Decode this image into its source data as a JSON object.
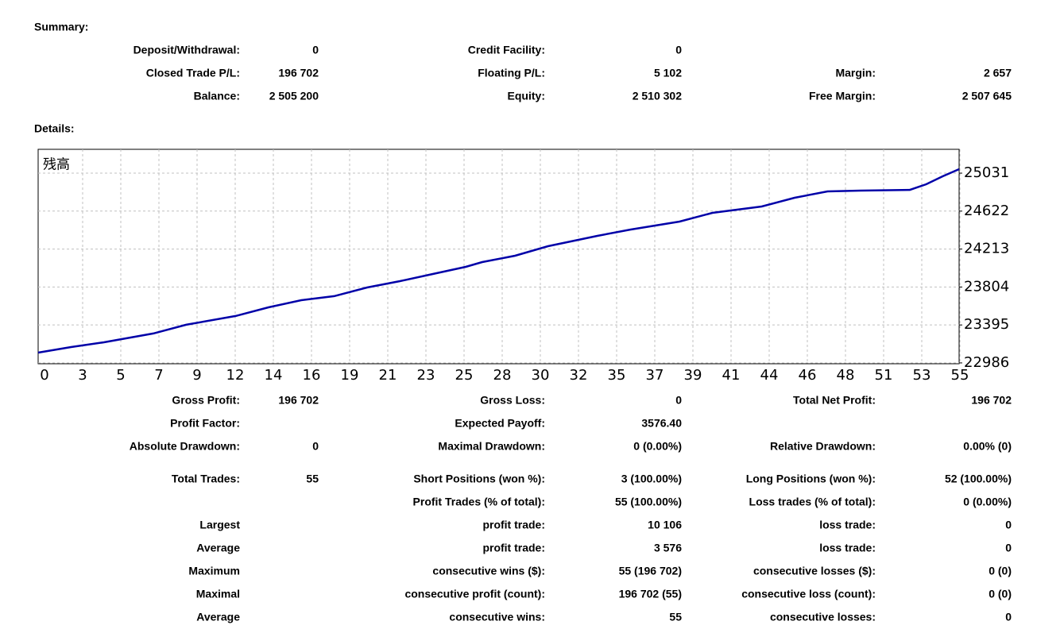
{
  "summary": {
    "title": "Summary:",
    "rows": [
      [
        "Deposit/Withdrawal:",
        "0",
        "Credit Facility:",
        "0",
        null,
        null
      ],
      [
        "Closed Trade P/L:",
        "196 702",
        "Floating P/L:",
        "5 102",
        "Margin:",
        "2 657"
      ],
      [
        "Balance:",
        "2 505 200",
        "Equity:",
        "2 510 302",
        "Free Margin:",
        "2 507 645"
      ]
    ]
  },
  "details": {
    "title": "Details:",
    "rows": [
      [
        "Gross Profit:",
        "196 702",
        "Gross Loss:",
        "0",
        "Total Net Profit:",
        "196 702"
      ],
      [
        "Profit Factor:",
        null,
        "Expected Payoff:",
        "3576.40",
        null,
        null
      ],
      [
        "Absolute Drawdown:",
        "0",
        "Maximal Drawdown:",
        "0 (0.00%)",
        "Relative Drawdown:",
        "0.00% (0)"
      ],
      [
        "Total Trades:",
        "55",
        "Short Positions (won %):",
        "3 (100.00%)",
        "Long Positions (won %):",
        "52 (100.00%)"
      ],
      [
        null,
        null,
        "Profit Trades (% of total):",
        "55 (100.00%)",
        "Loss trades (% of total):",
        "0 (0.00%)"
      ],
      [
        "Largest",
        null,
        "profit trade:",
        "10 106",
        "loss trade:",
        "0"
      ],
      [
        "Average",
        null,
        "profit trade:",
        "3 576",
        "loss trade:",
        "0"
      ],
      [
        "Maximum",
        null,
        "consecutive wins ($):",
        "55 (196 702)",
        "consecutive losses ($):",
        "0 (0)"
      ],
      [
        "Maximal",
        null,
        "consecutive profit (count):",
        "196 702 (55)",
        "consecutive loss (count):",
        "0 (0)"
      ],
      [
        "Average",
        null,
        "consecutive wins:",
        "55",
        "consecutive losses:",
        "0"
      ]
    ]
  },
  "chart_data": {
    "type": "line",
    "label": "残高",
    "tick_labels": [
      "0",
      "3",
      "5",
      "7",
      "9",
      "12",
      "14",
      "16",
      "19",
      "21",
      "23",
      "25",
      "28",
      "30",
      "32",
      "35",
      "37",
      "39",
      "41",
      "44",
      "46",
      "48",
      "51",
      "53",
      "55"
    ],
    "x": [
      0,
      2,
      4,
      7,
      9,
      12,
      14,
      16,
      18,
      20,
      22,
      24,
      26,
      27,
      29,
      31,
      34,
      36,
      39,
      41,
      44,
      46,
      48,
      50,
      53,
      54,
      55,
      56
    ],
    "series": [
      {
        "color": "#0000a8",
        "values": [
          23097,
          23157,
          23208,
          23303,
          23397,
          23491,
          23585,
          23662,
          23705,
          23799,
          23867,
          23944,
          24021,
          24073,
          24141,
          24244,
          24355,
          24423,
          24509,
          24603,
          24672,
          24766,
          24834,
          24843,
          24851,
          24911,
          24997,
          25074
        ]
      }
    ],
    "xlim": [
      0,
      56
    ],
    "ylim": [
      22977,
      25288
    ],
    "yticks": [
      22986,
      23395,
      23804,
      24213,
      24622,
      25031
    ],
    "grid": true
  }
}
